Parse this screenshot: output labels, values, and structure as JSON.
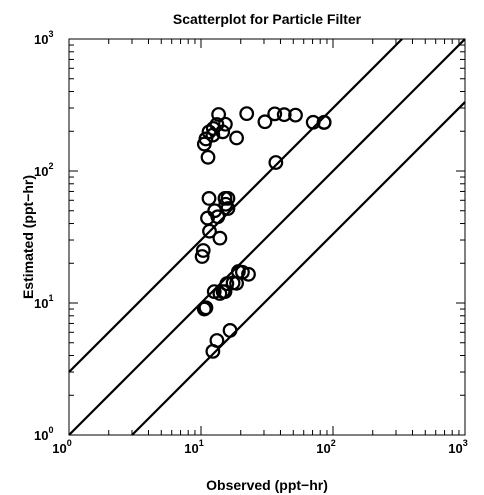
{
  "chart_data": {
    "type": "scatter",
    "title": "Scatterplot for Particle Filter",
    "xlabel": "Observed (ppt−hr)",
    "ylabel": "Estimated (ppt−hr)",
    "xscale": "log",
    "yscale": "log",
    "xlim": [
      1,
      1000
    ],
    "ylim": [
      1,
      1000
    ],
    "ticks": [
      {
        "base": "10",
        "exp": "0",
        "value": 1
      },
      {
        "base": "10",
        "exp": "1",
        "value": 10
      },
      {
        "base": "10",
        "exp": "2",
        "value": 100
      },
      {
        "base": "10",
        "exp": "3",
        "value": 1000
      }
    ],
    "grid": false,
    "legend": "none",
    "marker": "open-circle",
    "color": "#000000",
    "reference_lines": [
      {
        "label": "y = 3x",
        "factor": 3
      },
      {
        "label": "y = x",
        "factor": 1
      },
      {
        "label": "y = x/3",
        "factor": 0.333
      }
    ],
    "series": [
      {
        "points": [
          [
            13.6,
            268
          ],
          [
            12.4,
            210
          ],
          [
            13.2,
            225
          ],
          [
            15.3,
            226
          ],
          [
            14.6,
            198
          ],
          [
            11.5,
            198
          ],
          [
            12.3,
            187
          ],
          [
            10.9,
            175
          ],
          [
            10.6,
            160
          ],
          [
            11.3,
            127
          ],
          [
            18.6,
            178
          ],
          [
            22.2,
            272
          ],
          [
            30.5,
            236
          ],
          [
            36.2,
            271
          ],
          [
            42.7,
            267
          ],
          [
            52.0,
            265
          ],
          [
            70.8,
            234
          ],
          [
            85.6,
            233
          ],
          [
            85.7,
            234
          ],
          [
            36.9,
            116
          ],
          [
            11.5,
            62
          ],
          [
            15.2,
            62
          ],
          [
            16.0,
            62
          ],
          [
            15.4,
            56
          ],
          [
            16.0,
            52
          ],
          [
            12.7,
            50
          ],
          [
            13.4,
            45
          ],
          [
            11.2,
            44
          ],
          [
            11.6,
            35
          ],
          [
            13.9,
            31
          ],
          [
            10.4,
            25
          ],
          [
            10.2,
            22.5
          ],
          [
            19.2,
            17.3
          ],
          [
            20.6,
            17.1
          ],
          [
            22.9,
            16.5
          ],
          [
            17.5,
            14.2
          ],
          [
            15.7,
            14.0
          ],
          [
            18.6,
            14.1
          ],
          [
            15.2,
            12.2
          ],
          [
            14.7,
            12.2
          ],
          [
            13.9,
            11.8
          ],
          [
            12.6,
            12.2
          ],
          [
            10.9,
            9.2
          ],
          [
            10.6,
            9.0
          ],
          [
            16.6,
            6.2
          ],
          [
            13.2,
            5.2
          ],
          [
            12.3,
            4.3
          ]
        ]
      }
    ]
  }
}
